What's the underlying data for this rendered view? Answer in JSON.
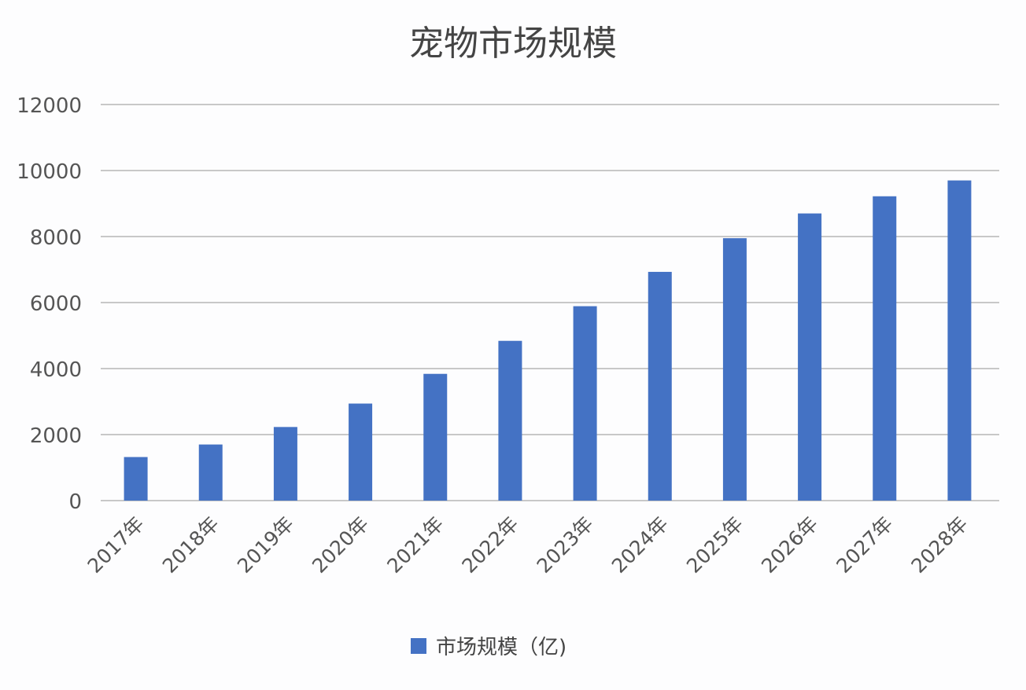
{
  "chart_data": {
    "type": "bar",
    "title": "宠物市场规模",
    "categories": [
      "2017年",
      "2018年",
      "2019年",
      "2020年",
      "2021年",
      "2022年",
      "2023年",
      "2024年",
      "2025年",
      "2026年",
      "2027年",
      "2028年"
    ],
    "series": [
      {
        "name": "市场规模（亿)",
        "values": [
          1320,
          1700,
          2230,
          2940,
          3840,
          4840,
          5890,
          6930,
          7950,
          8700,
          9220,
          9700
        ],
        "color": "#4472c4"
      }
    ],
    "yticks": [
      0,
      2000,
      4000,
      6000,
      8000,
      10000,
      12000
    ],
    "ylim": [
      0,
      12000
    ],
    "grid": true,
    "legend": "bottom",
    "xlabel": "",
    "ylabel": ""
  }
}
